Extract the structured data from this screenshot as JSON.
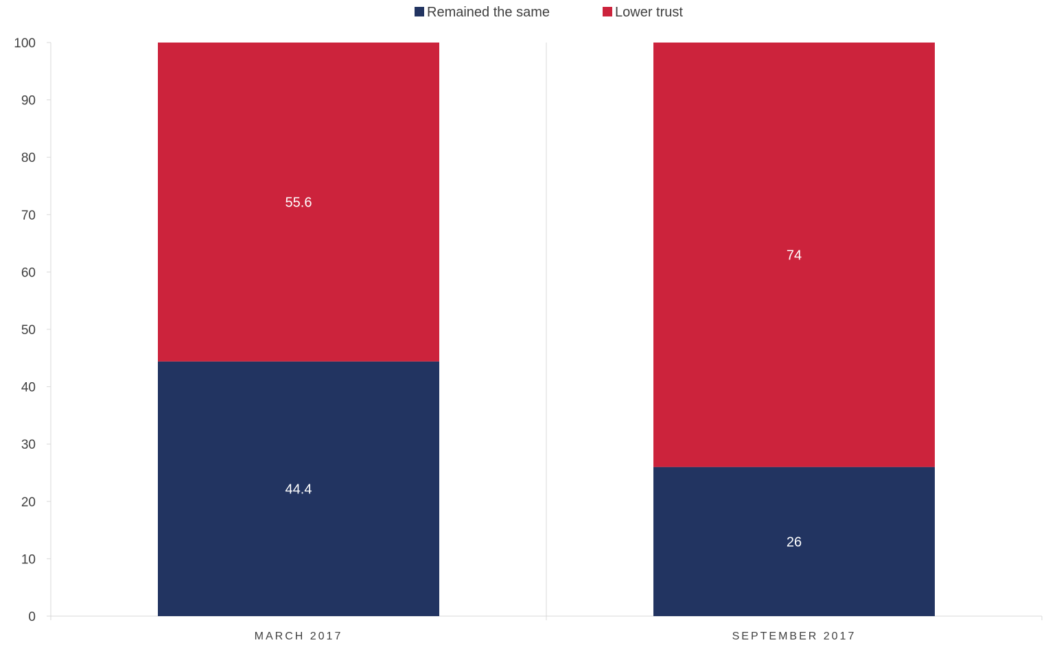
{
  "chart_data": {
    "type": "bar",
    "stacked": true,
    "categories": [
      "MARCH 2017",
      "SEPTEMBER 2017"
    ],
    "series": [
      {
        "name": "Remained the same",
        "values": [
          44.4,
          26
        ],
        "labels": [
          "44.4",
          "26"
        ],
        "color": "#223461"
      },
      {
        "name": "Lower trust",
        "values": [
          55.6,
          74
        ],
        "labels": [
          "55.6",
          "74"
        ],
        "color": "#cc233c"
      }
    ],
    "title": "",
    "xlabel": "",
    "ylabel": "",
    "ylim": [
      0,
      100
    ],
    "yticks": [
      0,
      10,
      20,
      30,
      40,
      50,
      60,
      70,
      80,
      90,
      100
    ],
    "legend_position": "top-center",
    "grid": false,
    "axis_color": "#d9d9d9",
    "text_color": "#3f3f3f"
  }
}
